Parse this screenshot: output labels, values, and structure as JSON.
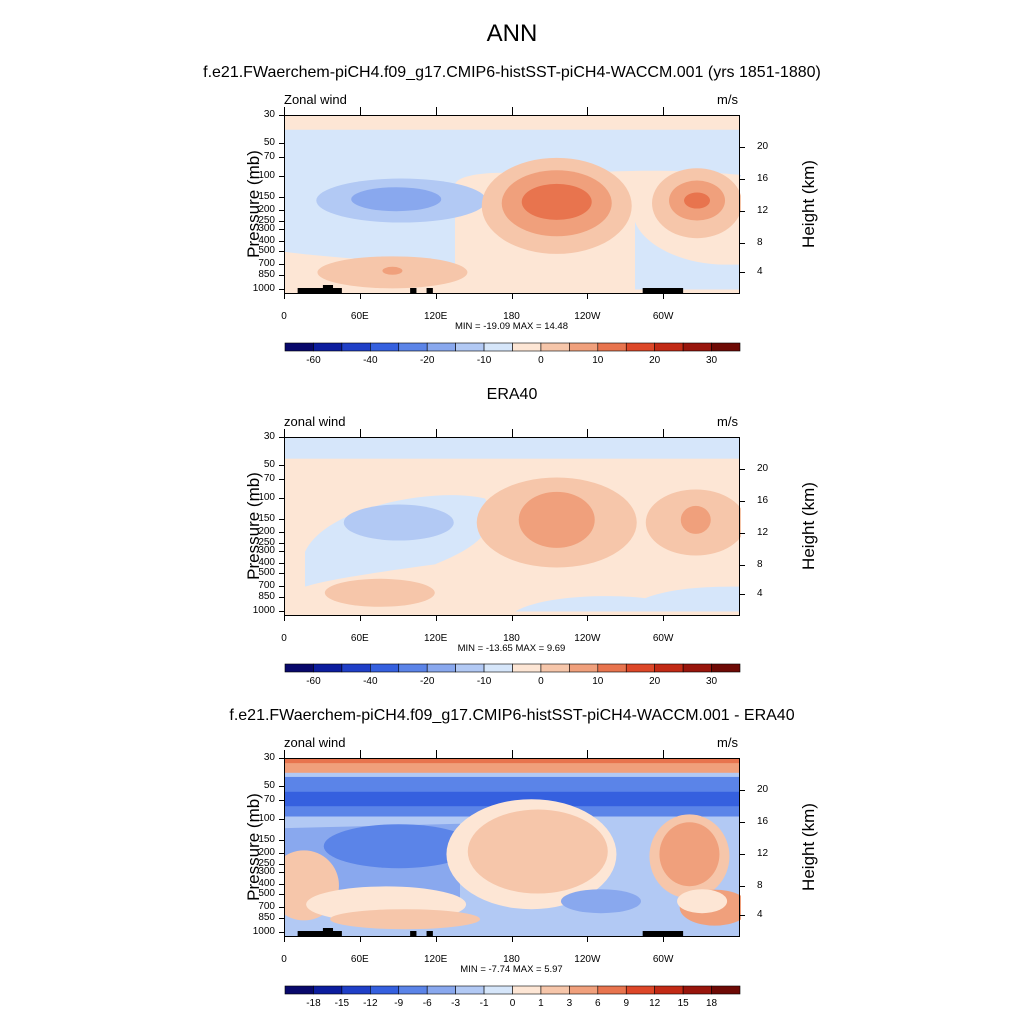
{
  "main_title": "ANN",
  "colors": {
    "full_scale": [
      "#08086b",
      "#0c1d9e",
      "#1f3fc7",
      "#3560df",
      "#5b84e8",
      "#89a8ee",
      "#b2c9f4",
      "#d6e6fa",
      "#fde6d5",
      "#f6c6aa",
      "#f0a07c",
      "#e8744e",
      "#dd4728",
      "#c22a15",
      "#98150c",
      "#6e0a05"
    ],
    "anomaly_scale": [
      "#08086b",
      "#0c1d9e",
      "#1f3fc7",
      "#3560df",
      "#5b84e8",
      "#89a8ee",
      "#b2c9f4",
      "#d6e6fa",
      "#fde6d5",
      "#f6c6aa",
      "#f0a07c",
      "#e8744e",
      "#dd4728",
      "#c22a15",
      "#98150c",
      "#6e0a05"
    ],
    "topography": "#000000"
  },
  "chart_data": [
    {
      "type": "heatmap",
      "title": "f.e21.FWaerchem-piCH4.f09_g17.CMIP6-histSST-piCH4-WACCM.001 (yrs 1851-1880)",
      "left_label": "Zonal wind",
      "units": "m/s",
      "ylabel": "Pressure (mb)",
      "ylabel_right": "Height (km)",
      "x_ticks": [
        "0",
        "60E",
        "120E",
        "180",
        "120W",
        "60W"
      ],
      "y_ticks": [
        "30",
        "50",
        "70",
        "100",
        "150",
        "200",
        "250",
        "300",
        "400",
        "500",
        "700",
        "850",
        "1000"
      ],
      "y_right_ticks": [
        "20",
        "16",
        "12",
        "8",
        "4"
      ],
      "min": -19.09,
      "max": 14.48,
      "min_max_text": "MIN = -19.09  MAX =  14.48",
      "levels": [
        "-60",
        "-40",
        "-20",
        "-10",
        "0",
        "10",
        "20",
        "30"
      ],
      "grid": false,
      "features": [
        {
          "lon": 95,
          "p": 150,
          "value": -15
        },
        {
          "lon": 215,
          "p": 150,
          "value": 14.48
        },
        {
          "lon": 325,
          "p": 150,
          "value": 12
        },
        {
          "lon": 80,
          "p": 750,
          "value": 5
        }
      ]
    },
    {
      "type": "heatmap",
      "title": "ERA40",
      "left_label": "zonal wind",
      "units": "m/s",
      "ylabel": "Pressure (mb)",
      "ylabel_right": "Height (km)",
      "x_ticks": [
        "0",
        "60E",
        "120E",
        "180",
        "120W",
        "60W"
      ],
      "y_ticks": [
        "30",
        "50",
        "70",
        "100",
        "150",
        "200",
        "250",
        "300",
        "400",
        "500",
        "700",
        "850",
        "1000"
      ],
      "y_right_ticks": [
        "20",
        "16",
        "12",
        "8",
        "4"
      ],
      "min": -13.65,
      "max": 9.69,
      "min_max_text": "MIN = -13.65  MAX =   9.69",
      "levels": [
        "-60",
        "-40",
        "-20",
        "-10",
        "0",
        "10",
        "20",
        "30"
      ],
      "grid": false,
      "features": [
        {
          "lon": 90,
          "p": 150,
          "value": -8
        },
        {
          "lon": 215,
          "p": 150,
          "value": 9.69
        },
        {
          "lon": 325,
          "p": 150,
          "value": 8
        }
      ]
    },
    {
      "type": "heatmap",
      "title": "f.e21.FWaerchem-piCH4.f09_g17.CMIP6-histSST-piCH4-WACCM.001 - ERA40",
      "left_label": "zonal wind",
      "units": "m/s",
      "ylabel": "Pressure (mb)",
      "ylabel_right": "Height (km)",
      "x_ticks": [
        "0",
        "60E",
        "120E",
        "180",
        "120W",
        "60W"
      ],
      "y_ticks": [
        "30",
        "50",
        "70",
        "100",
        "150",
        "200",
        "250",
        "300",
        "400",
        "500",
        "700",
        "850",
        "1000"
      ],
      "y_right_ticks": [
        "20",
        "16",
        "12",
        "8",
        "4"
      ],
      "min": -7.74,
      "max": 5.97,
      "min_max_text": "MIN = -7.74  MAX =  5.97",
      "levels": [
        "-18",
        "-15",
        "-12",
        "-9",
        "-6",
        "-3",
        "-1",
        "0",
        "1",
        "3",
        "6",
        "9",
        "12",
        "15",
        "18"
      ],
      "grid": false,
      "features": [
        {
          "lon": 180,
          "p": 65,
          "value": -7.74
        },
        {
          "lon": 195,
          "p": 200,
          "value": 5.97
        },
        {
          "lon": 320,
          "p": 200,
          "value": 4
        },
        {
          "lon": 90,
          "p": 150,
          "value": -6
        }
      ]
    }
  ]
}
